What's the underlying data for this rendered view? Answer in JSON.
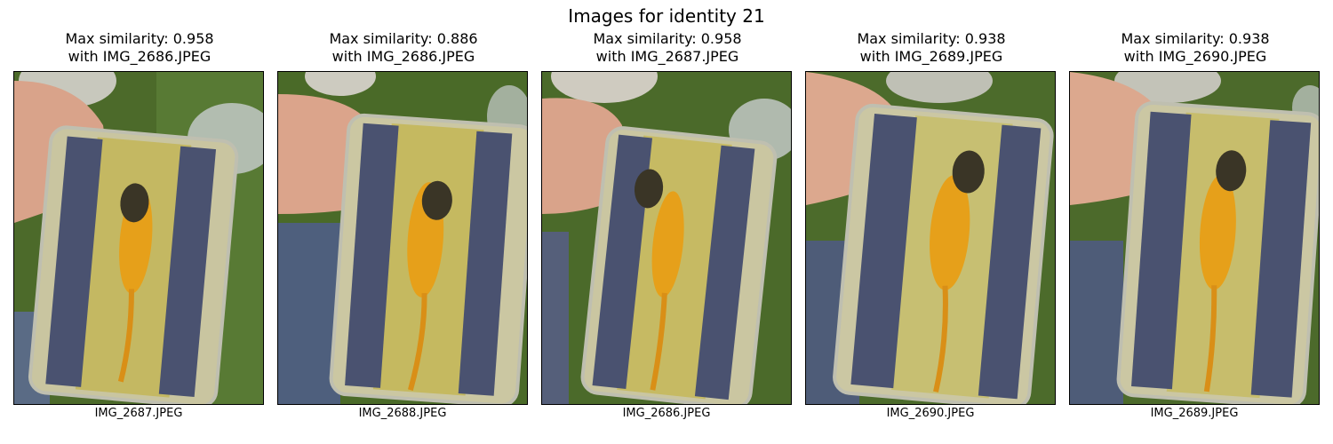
{
  "title": "Images for identity 21",
  "panels": [
    {
      "title_line1": "Max similarity: 0.958",
      "title_line2": "with IMG_2686.JPEG",
      "xlabel": "IMG_2687.JPEG"
    },
    {
      "title_line1": "Max similarity: 0.886",
      "title_line2": "with IMG_2686.JPEG",
      "xlabel": "IMG_2688.JPEG"
    },
    {
      "title_line1": "Max similarity: 0.958",
      "title_line2": "with IMG_2687.JPEG",
      "xlabel": "IMG_2686.JPEG"
    },
    {
      "title_line1": "Max similarity: 0.938",
      "title_line2": "with IMG_2689.JPEG",
      "xlabel": "IMG_2690.JPEG"
    },
    {
      "title_line1": "Max similarity: 0.938",
      "title_line2": "with IMG_2690.JPEG",
      "xlabel": "IMG_2689.JPEG"
    }
  ]
}
